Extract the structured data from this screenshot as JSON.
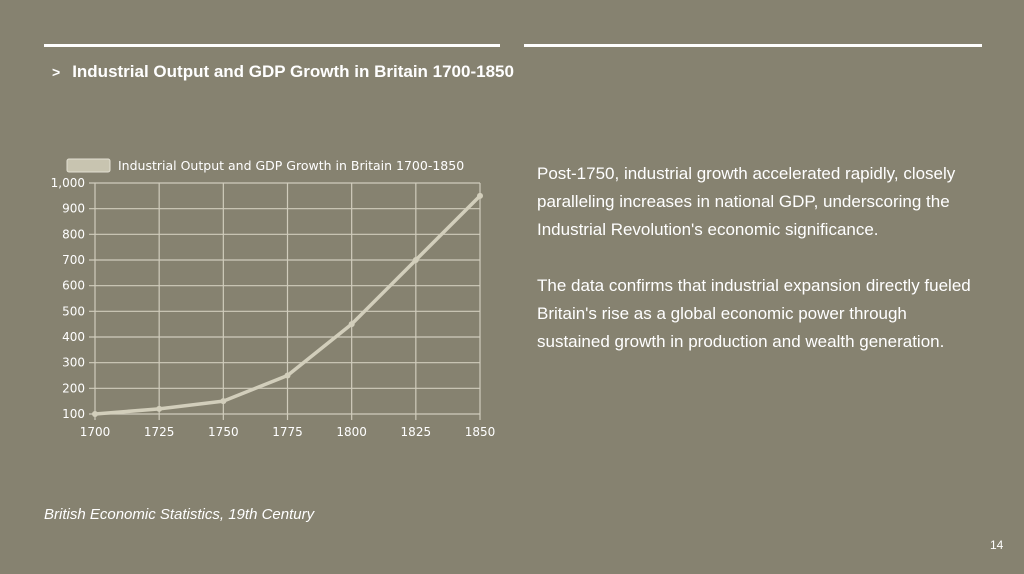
{
  "slide": {
    "bullet": ">",
    "title": "Industrial Output and GDP Growth in Britain 1700-1850",
    "paragraph1": "Post-1750, industrial growth accelerated rapidly, closely paralleling increases in national GDP, underscoring the Industrial Revolution's economic significance.",
    "paragraph2": "The data confirms that industrial expansion directly fueled Britain's rise as a global economic power through sustained growth in production and wealth generation.",
    "source": "British Economic Statistics, 19th Century",
    "page_number": "14"
  },
  "chart_data": {
    "type": "line",
    "title": "",
    "x": [
      1700,
      1725,
      1750,
      1775,
      1800,
      1825,
      1850
    ],
    "series": [
      {
        "name": "Industrial Output and GDP Growth in Britain 1700-1850",
        "values": [
          100,
          120,
          150,
          250,
          450,
          700,
          950
        ]
      }
    ],
    "x_tick_labels": [
      "1700",
      "1725",
      "1750",
      "1775",
      "1800",
      "1825",
      "1850"
    ],
    "y_tick_labels": [
      "100",
      "200",
      "300",
      "400",
      "500",
      "600",
      "700",
      "800",
      "900",
      "1,000"
    ],
    "y_ticks": [
      100,
      200,
      300,
      400,
      500,
      600,
      700,
      800,
      900,
      1000
    ],
    "xlabel": "",
    "ylabel": "",
    "xlim": [
      1700,
      1850
    ],
    "ylim": [
      100,
      1000
    ],
    "grid": true,
    "legend": "top-left",
    "colors": {
      "line": "#d2cebb",
      "grid": "#d0ccbc",
      "text": "#ffffff",
      "legend_swatch": "#c8c4b0"
    }
  }
}
